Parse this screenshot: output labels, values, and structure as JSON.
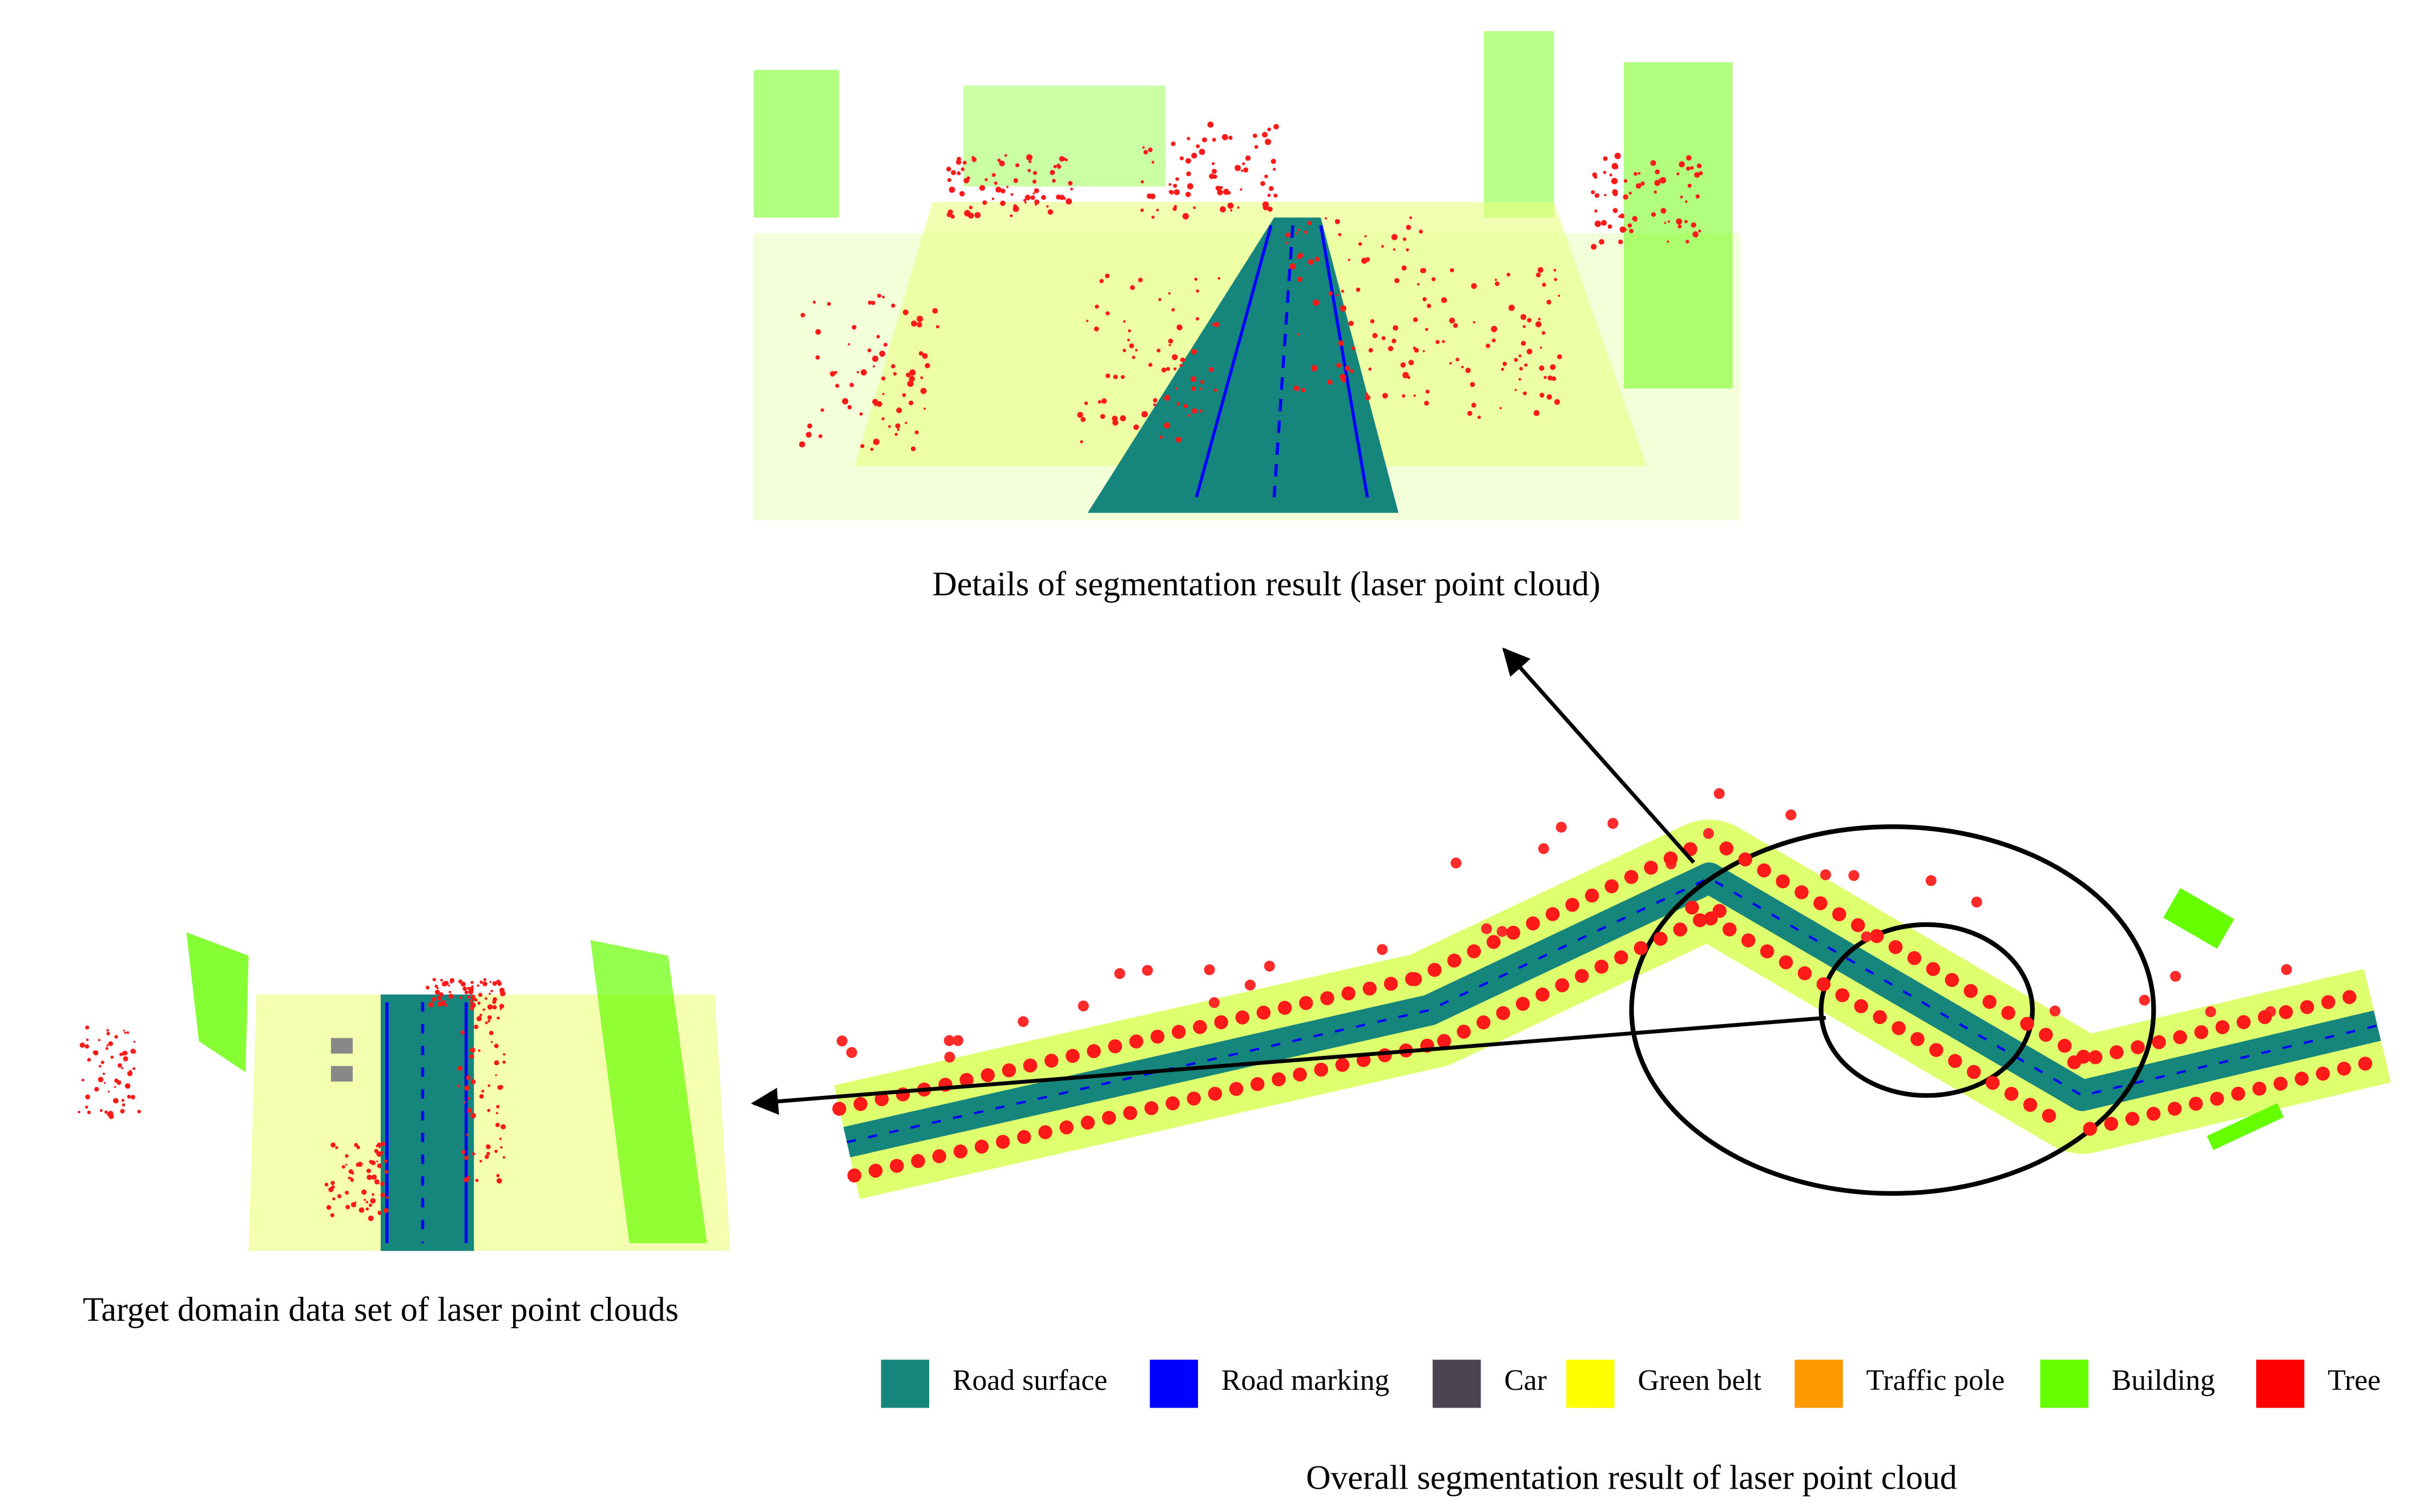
{
  "top_panel": {
    "caption": "Details of segmentation result (laser point cloud)"
  },
  "left_panel": {
    "caption": "Target domain data set of laser point clouds"
  },
  "main_panel": {
    "caption": "Overall segmentation result of laser point cloud"
  },
  "legend": {
    "items": [
      {
        "label": "Road surface",
        "color": "#16857c"
      },
      {
        "label": "Road marking",
        "color": "#0000ff"
      },
      {
        "label": "Car",
        "color": "#4b4453"
      },
      {
        "label": "Green belt",
        "color": "#ffff00"
      },
      {
        "label": "Traffic pole",
        "color": "#ff9900"
      },
      {
        "label": "Building",
        "color": "#66ff00"
      },
      {
        "label": "Tree",
        "color": "#ff0000"
      }
    ]
  }
}
